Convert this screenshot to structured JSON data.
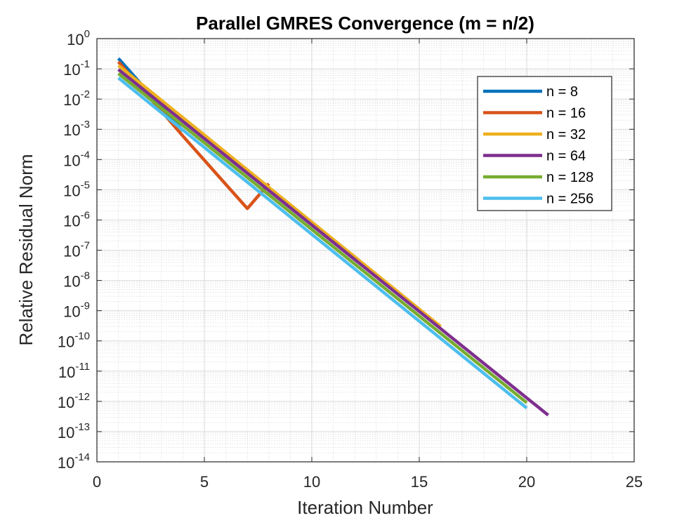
{
  "chart_data": {
    "type": "line",
    "title": "Parallel GMRES Convergence (m = n/2)",
    "xlabel": "Iteration Number",
    "ylabel": "Relative Residual Norm",
    "xlim": [
      0,
      25
    ],
    "ylim": [
      1e-14,
      1
    ],
    "yscale": "log",
    "xticks": [
      0,
      5,
      10,
      15,
      20,
      25
    ],
    "yticks_exponents": [
      0,
      -1,
      -2,
      -3,
      -4,
      -5,
      -6,
      -7,
      -8,
      -9,
      -10,
      -11,
      -12,
      -13,
      -14
    ],
    "ytick_base": "10",
    "grid": true,
    "minor_grid": true,
    "legend_position": "top-right",
    "series": [
      {
        "name": "n = 8",
        "color": "#0072BD",
        "x": [
          1,
          2,
          3,
          4
        ],
        "y": [
          0.22,
          0.035,
          0.0055,
          0.0009
        ]
      },
      {
        "name": "n = 16",
        "color": "#D95319",
        "x": [
          1,
          2,
          3,
          4,
          5,
          6,
          7,
          8
        ],
        "y": [
          0.17,
          0.026,
          0.004,
          0.0006,
          9.5e-05,
          1.5e-05,
          2.4e-06,
          1.6e-05
        ]
      },
      {
        "name": "n = 32",
        "color": "#EDB120",
        "x": [
          1,
          16
        ],
        "y": [
          0.13,
          3e-10
        ]
      },
      {
        "name": "n = 64",
        "color": "#7E2F8E",
        "x": [
          1,
          21
        ],
        "y": [
          0.095,
          3.5e-13
        ]
      },
      {
        "name": "n = 128",
        "color": "#77AC30",
        "x": [
          1,
          20
        ],
        "y": [
          0.07,
          9e-13
        ]
      },
      {
        "name": "n = 256",
        "color": "#4DBEEE",
        "x": [
          1,
          20
        ],
        "y": [
          0.05,
          6e-13
        ]
      }
    ]
  }
}
